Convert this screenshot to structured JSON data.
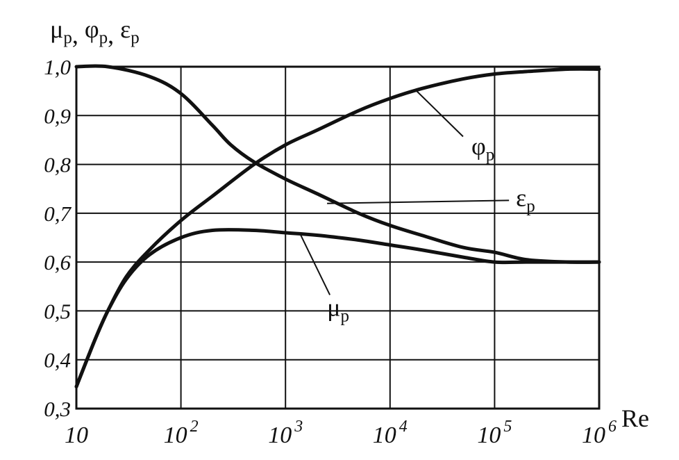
{
  "chart_data": {
    "type": "line",
    "title": "",
    "xlabel": "Re",
    "ylabel": {
      "parts": [
        [
          "μ",
          "p"
        ],
        [
          "φ",
          "p"
        ],
        [
          "ε",
          "p"
        ]
      ],
      "separator": ", "
    },
    "x_scale": "log",
    "xlim": [
      10,
      1000000
    ],
    "ylim": [
      0.3,
      1.0
    ],
    "grid": true,
    "x_ticks": [
      {
        "value": 10,
        "base": "10",
        "exp": ""
      },
      {
        "value": 100,
        "base": "10",
        "exp": "2"
      },
      {
        "value": 1000,
        "base": "10",
        "exp": "3"
      },
      {
        "value": 10000,
        "base": "10",
        "exp": "4"
      },
      {
        "value": 100000,
        "base": "10",
        "exp": "5"
      },
      {
        "value": 1000000,
        "base": "10",
        "exp": "6"
      }
    ],
    "y_ticks": [
      {
        "value": 0.3,
        "label": "0,3"
      },
      {
        "value": 0.4,
        "label": "0,4"
      },
      {
        "value": 0.5,
        "label": "0,5"
      },
      {
        "value": 0.6,
        "label": "0,6"
      },
      {
        "value": 0.7,
        "label": "0,7"
      },
      {
        "value": 0.8,
        "label": "0,8"
      },
      {
        "value": 0.9,
        "label": "0,9"
      },
      {
        "value": 1.0,
        "label": "1,0"
      }
    ],
    "series": [
      {
        "name": "φp",
        "sym": "φ",
        "sub": "p",
        "points": [
          [
            10,
            0.345
          ],
          [
            15,
            0.44
          ],
          [
            20,
            0.5
          ],
          [
            30,
            0.57
          ],
          [
            50,
            0.625
          ],
          [
            100,
            0.685
          ],
          [
            200,
            0.735
          ],
          [
            500,
            0.8
          ],
          [
            1000,
            0.84
          ],
          [
            2000,
            0.87
          ],
          [
            5000,
            0.91
          ],
          [
            10000,
            0.935
          ],
          [
            20000,
            0.955
          ],
          [
            50000,
            0.975
          ],
          [
            100000,
            0.985
          ],
          [
            200000,
            0.99
          ],
          [
            500000,
            0.995
          ],
          [
            1000000,
            0.995
          ]
        ],
        "label_at": [
          60000,
          0.82
        ],
        "pointer_at": [
          18000,
          0.95
        ]
      },
      {
        "name": "εp",
        "sym": "ε",
        "sub": "p",
        "points": [
          [
            10,
            1.0
          ],
          [
            20,
            1.0
          ],
          [
            50,
            0.98
          ],
          [
            100,
            0.945
          ],
          [
            200,
            0.88
          ],
          [
            300,
            0.84
          ],
          [
            500,
            0.805
          ],
          [
            1000,
            0.77
          ],
          [
            2000,
            0.74
          ],
          [
            5000,
            0.7
          ],
          [
            10000,
            0.675
          ],
          [
            20000,
            0.655
          ],
          [
            50000,
            0.63
          ],
          [
            100000,
            0.62
          ],
          [
            200000,
            0.605
          ],
          [
            500000,
            0.6
          ],
          [
            1000000,
            0.6
          ]
        ],
        "label_at": [
          160000,
          0.715
        ],
        "pointer_at": [
          2500,
          0.72
        ]
      },
      {
        "name": "μp",
        "sym": "μ",
        "sub": "p",
        "points": [
          [
            10,
            0.345
          ],
          [
            15,
            0.44
          ],
          [
            20,
            0.5
          ],
          [
            30,
            0.565
          ],
          [
            50,
            0.615
          ],
          [
            100,
            0.65
          ],
          [
            200,
            0.665
          ],
          [
            500,
            0.665
          ],
          [
            1000,
            0.66
          ],
          [
            2000,
            0.655
          ],
          [
            5000,
            0.645
          ],
          [
            10000,
            0.635
          ],
          [
            20000,
            0.625
          ],
          [
            50000,
            0.61
          ],
          [
            100000,
            0.6
          ],
          [
            200000,
            0.6
          ],
          [
            500000,
            0.6
          ],
          [
            1000000,
            0.6
          ]
        ],
        "label_at": [
          2500,
          0.49
        ],
        "pointer_at": [
          1400,
          0.655
        ]
      }
    ]
  }
}
